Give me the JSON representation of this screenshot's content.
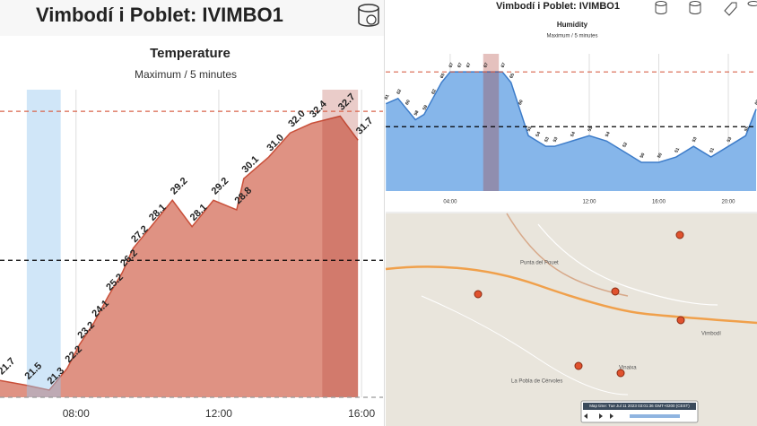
{
  "header": {
    "title": "Vimbodí i Poblet: IVIMBO1"
  },
  "right_header": {
    "title": "Vimbodí i Poblet: IVIMBO1"
  },
  "chart_data": [
    {
      "type": "area",
      "title": "Temperature",
      "subtitle": "Maximum / 5 minutes",
      "x": [
        5.87,
        6.62,
        7.25,
        7.75,
        8.1,
        8.5,
        8.9,
        9.3,
        9.6,
        10.1,
        10.7,
        11.25,
        11.85,
        12.5,
        12.7,
        13.4,
        14.0,
        14.6,
        15.4,
        15.9
      ],
      "series": [
        {
          "name": "Temperature",
          "color": "#c9503a",
          "fill": "#df9283",
          "values": [
            21.7,
            21.5,
            21.3,
            22.2,
            23.2,
            24.1,
            25.2,
            26.2,
            27.2,
            28.1,
            29.2,
            28.1,
            29.2,
            28.8,
            30.1,
            31.0,
            32.0,
            32.4,
            32.7,
            31.7
          ],
          "value_labels": [
            "21.7",
            "21.5",
            "21.3",
            "22.2",
            "23.2",
            "24.1",
            "25.2",
            "26.2",
            "27.2",
            "28.1",
            "29.2",
            "28.1",
            "29.2",
            "28.8",
            "30.1",
            "31.0",
            "32.0",
            "32.4",
            "32.7",
            "31.7"
          ]
        }
      ],
      "xlim": [
        5.87,
        16.6
      ],
      "ylim": [
        21.0,
        33.8
      ],
      "xticks": [
        {
          "value": 8,
          "label": "08:00"
        },
        {
          "value": 12,
          "label": "12:00"
        },
        {
          "value": 16,
          "label": "16:00"
        }
      ],
      "grid": true,
      "bands": [
        {
          "from": 6.62,
          "to": 7.57,
          "color": "rgba(150,200,240,0.45)"
        },
        {
          "from": 14.9,
          "to": 15.9,
          "color": "rgba(170,50,40,0.25)"
        }
      ],
      "ref_lines": [
        {
          "value": 32.9,
          "color": "#d9654c"
        },
        {
          "value": 26.7,
          "color": "#000000"
        },
        {
          "value": 21.0,
          "color": "#999999"
        }
      ]
    },
    {
      "type": "area",
      "title": "Humidity",
      "subtitle": "Maximum / 5 minutes",
      "x": [
        0.3,
        1,
        1.5,
        2,
        2.5,
        3,
        3.5,
        4,
        4.5,
        5,
        6,
        7,
        7.5,
        8,
        8.5,
        9,
        9.5,
        10,
        11,
        12,
        13,
        14,
        15,
        16,
        17,
        18,
        19,
        20,
        21,
        21.6
      ],
      "series": [
        {
          "name": "Humidity",
          "color": "#3d7cc9",
          "fill": "#86b6ea",
          "values": [
            61,
            62,
            60,
            58,
            59,
            62,
            65,
            67,
            67,
            67,
            67,
            67,
            65,
            60,
            55,
            54,
            53,
            53,
            54,
            55,
            54,
            52,
            50,
            50,
            51,
            53,
            51,
            53,
            55,
            60
          ]
        }
      ],
      "xlim": [
        0.29,
        21.65
      ],
      "ylim": [
        44.6,
        70.4
      ],
      "xticks": [
        {
          "value": 4,
          "label": "04:00"
        },
        {
          "value": 12,
          "label": "12:00"
        },
        {
          "value": 16,
          "label": "16:00"
        },
        {
          "value": 20,
          "label": "20:00"
        }
      ],
      "grid": true,
      "bands": [
        {
          "from": 5.9,
          "to": 6.8,
          "color": "rgba(170,50,40,0.3)"
        }
      ],
      "ref_lines": [
        {
          "value": 67,
          "color": "#d9654c"
        },
        {
          "value": 56.7,
          "color": "#000000"
        }
      ]
    }
  ],
  "map": {
    "places": [
      "Punta del Pouet",
      "La Pobla de Cérvoles",
      "Vinaixa",
      "Vimbodí"
    ],
    "time": "Map time: Tue Jul 11 2023 03:01:36 GMT+0200 (CEST)"
  }
}
